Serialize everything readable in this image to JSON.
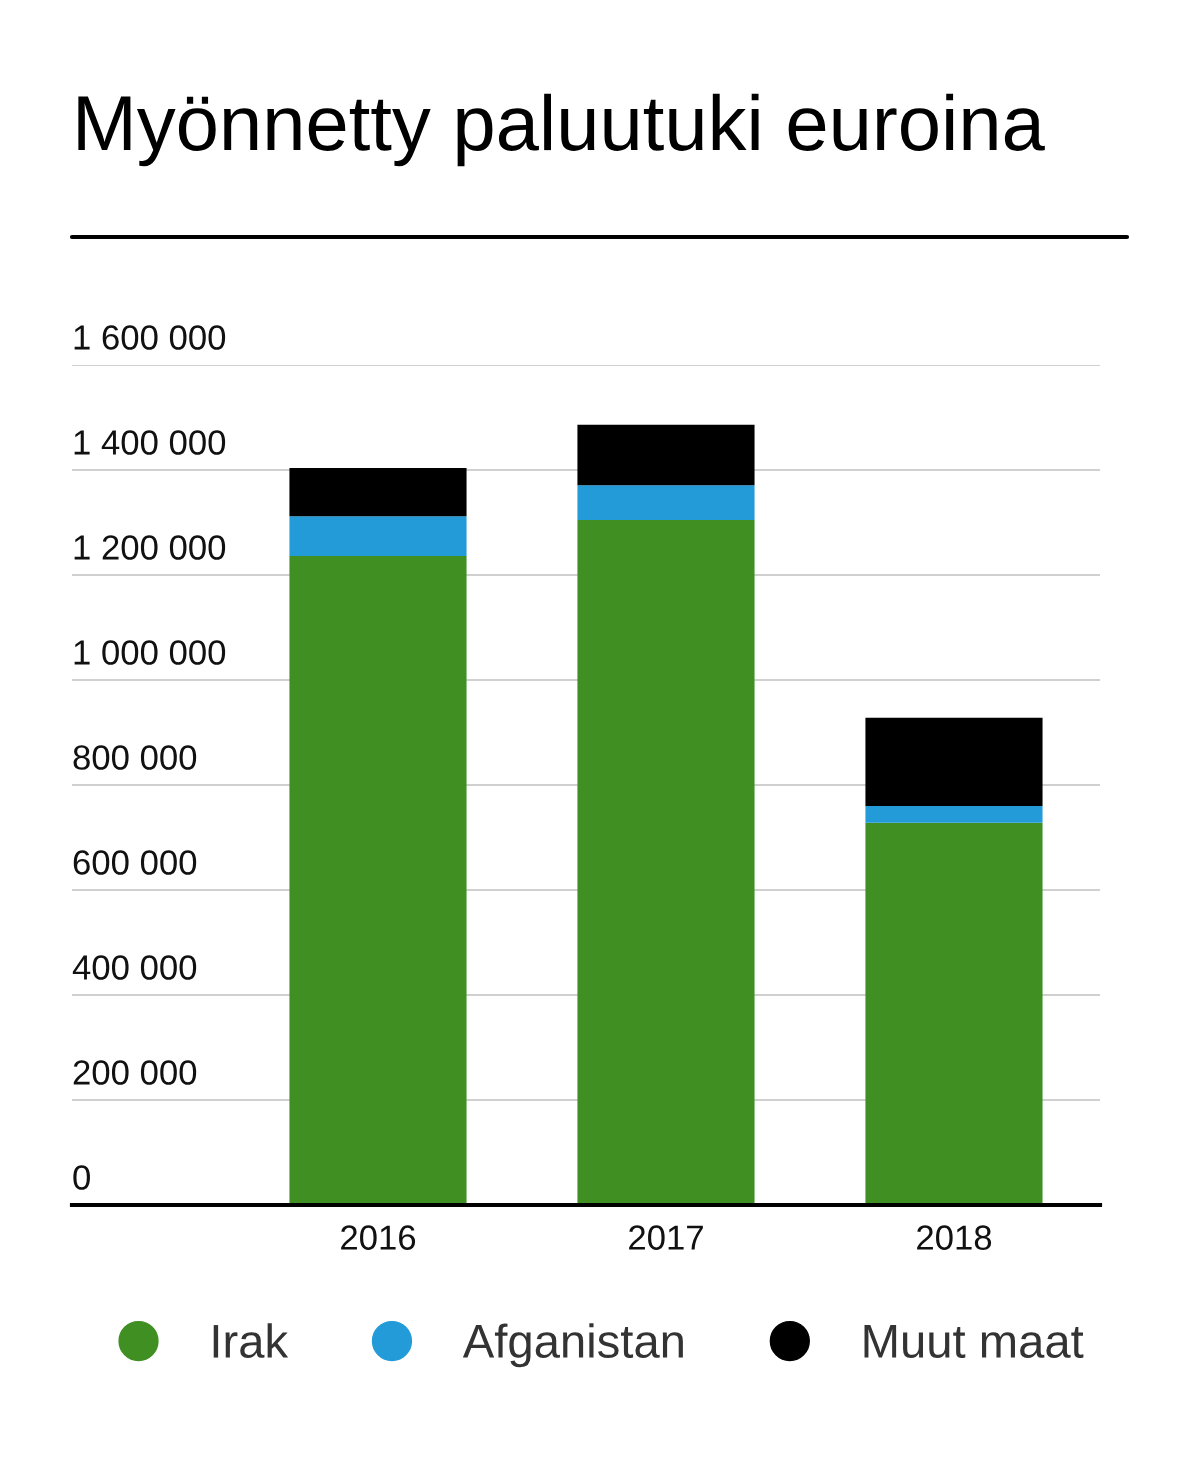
{
  "chart_data": {
    "type": "bar",
    "title": "Myönnetty paluutuki euroina",
    "categories": [
      "2016",
      "2017",
      "2018"
    ],
    "stacked": true,
    "series": [
      {
        "name": "Irak",
        "color": "#3f8f23",
        "values": [
          1236000,
          1305000,
          728000
        ]
      },
      {
        "name": "Afganistan",
        "color": "#229bd8",
        "values": [
          76000,
          66000,
          32000
        ]
      },
      {
        "name": "Muut maat",
        "color": "#000000",
        "values": [
          92000,
          115000,
          168000
        ]
      }
    ],
    "ylim": [
      0,
      1600000
    ],
    "yticks": [
      0,
      {
        "value": 200000,
        "label": "200 000"
      },
      {
        "value": 400000,
        "label": "400 000"
      },
      {
        "value": 600000,
        "label": "600 000"
      },
      {
        "value": 800000,
        "label": "800 000"
      },
      {
        "value": 1000000,
        "label": "1 000 000"
      },
      {
        "value": 1200000,
        "label": "1 200 000"
      },
      {
        "value": 1400000,
        "label": "1 400 000"
      },
      {
        "value": 1600000,
        "label": "1 600 000"
      }
    ],
    "grid": "y",
    "legend": "bottom"
  }
}
